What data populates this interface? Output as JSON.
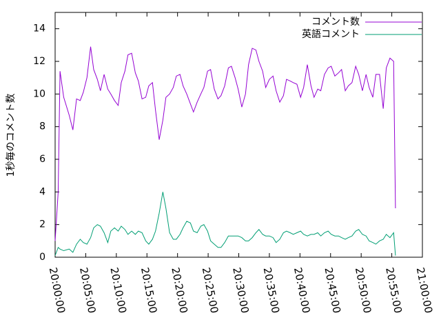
{
  "chart_data": {
    "type": "line",
    "ylabel": "1秒毎のコメント数",
    "x": [
      0,
      0.5,
      0.8,
      1.4,
      2.3,
      2.9,
      3.5,
      4.1,
      4.6,
      5.2,
      5.8,
      6.3,
      6.9,
      7.4,
      8.0,
      8.6,
      9.1,
      9.7,
      10.3,
      10.8,
      11.4,
      11.9,
      12.5,
      13.1,
      13.6,
      14.2,
      14.8,
      15.3,
      15.9,
      16.4,
      17.0,
      17.6,
      18.1,
      18.7,
      19.3,
      19.8,
      20.4,
      20.9,
      21.5,
      22.1,
      22.6,
      23.2,
      23.8,
      24.3,
      24.9,
      25.4,
      26.0,
      26.6,
      27.1,
      27.7,
      28.3,
      28.8,
      29.4,
      29.9,
      30.5,
      31.1,
      31.6,
      32.2,
      32.8,
      33.3,
      33.9,
      34.4,
      35.0,
      35.6,
      36.1,
      36.7,
      37.3,
      37.8,
      38.4,
      38.9,
      39.5,
      40.1,
      40.6,
      41.2,
      41.8,
      42.3,
      42.9,
      43.4,
      44.0,
      44.6,
      45.1,
      45.7,
      46.3,
      46.8,
      47.4,
      47.9,
      48.5,
      49.1,
      49.6,
      50.2,
      50.8,
      51.3,
      51.9,
      52.4,
      53.0,
      53.6,
      54.1,
      54.7,
      55.3,
      55.6
    ],
    "series": [
      {
        "name": "コメント数",
        "color": "#9400d3",
        "values": [
          1.0,
          4.0,
          11.4,
          9.8,
          8.7,
          7.8,
          9.7,
          9.6,
          10.1,
          11.0,
          12.9,
          11.5,
          10.9,
          10.2,
          11.2,
          10.3,
          10.0,
          9.6,
          9.3,
          10.7,
          11.4,
          12.4,
          12.5,
          11.3,
          10.8,
          9.7,
          9.8,
          10.5,
          10.7,
          9.0,
          7.2,
          8.4,
          9.8,
          10.0,
          10.4,
          11.1,
          11.2,
          10.5,
          10.0,
          9.4,
          8.9,
          9.5,
          10.0,
          10.4,
          11.4,
          11.5,
          10.3,
          9.7,
          9.9,
          10.5,
          11.6,
          11.7,
          11.0,
          10.3,
          9.2,
          10.0,
          11.8,
          12.8,
          12.7,
          12.0,
          11.4,
          10.4,
          10.9,
          11.1,
          10.2,
          9.5,
          9.9,
          10.9,
          10.8,
          10.7,
          10.6,
          9.8,
          10.4,
          11.8,
          10.5,
          9.8,
          10.3,
          10.2,
          11.2,
          11.6,
          11.7,
          11.1,
          11.3,
          11.5,
          10.2,
          10.5,
          10.7,
          11.7,
          11.2,
          10.2,
          11.2,
          10.4,
          9.8,
          11.2,
          11.2,
          9.1,
          11.6,
          12.2,
          12.0,
          3.0
        ]
      },
      {
        "name": "英語コメント",
        "color": "#009e73",
        "values": [
          0.1,
          0.6,
          0.5,
          0.4,
          0.5,
          0.3,
          0.8,
          1.1,
          0.9,
          0.8,
          1.2,
          1.8,
          2.0,
          1.9,
          1.5,
          0.9,
          1.6,
          1.8,
          1.6,
          1.9,
          1.7,
          1.4,
          1.6,
          1.4,
          1.6,
          1.5,
          1.0,
          0.8,
          1.1,
          1.6,
          2.7,
          4.0,
          3.0,
          1.5,
          1.1,
          1.1,
          1.4,
          1.8,
          2.2,
          2.1,
          1.6,
          1.5,
          1.9,
          2.0,
          1.6,
          1.0,
          0.8,
          0.6,
          0.6,
          0.9,
          1.3,
          1.3,
          1.3,
          1.3,
          1.2,
          1.0,
          1.0,
          1.2,
          1.5,
          1.7,
          1.4,
          1.3,
          1.3,
          1.2,
          0.9,
          1.1,
          1.5,
          1.6,
          1.5,
          1.4,
          1.5,
          1.6,
          1.4,
          1.3,
          1.4,
          1.4,
          1.5,
          1.3,
          1.5,
          1.6,
          1.4,
          1.3,
          1.3,
          1.2,
          1.1,
          1.2,
          1.3,
          1.6,
          1.7,
          1.4,
          1.3,
          1.0,
          0.9,
          0.8,
          1.0,
          1.1,
          1.4,
          1.2,
          1.5,
          0.1
        ]
      }
    ],
    "xlim": [
      0,
      60
    ],
    "xticks": [
      {
        "value": 0,
        "label": "20:00:00"
      },
      {
        "value": 5,
        "label": "20:05:00"
      },
      {
        "value": 10,
        "label": "20:10:00"
      },
      {
        "value": 15,
        "label": "20:15:00"
      },
      {
        "value": 20,
        "label": "20:20:00"
      },
      {
        "value": 25,
        "label": "20:25:00"
      },
      {
        "value": 30,
        "label": "20:30:00"
      },
      {
        "value": 35,
        "label": "20:35:00"
      },
      {
        "value": 40,
        "label": "20:40:00"
      },
      {
        "value": 45,
        "label": "20:45:00"
      },
      {
        "value": 50,
        "label": "20:50:00"
      },
      {
        "value": 55,
        "label": "20:55:00"
      },
      {
        "value": 60,
        "label": "21:00:00"
      }
    ],
    "ylim": [
      0,
      15
    ],
    "yticks": [
      0,
      2,
      4,
      6,
      8,
      10,
      12,
      14
    ],
    "grid": false,
    "legend": "top-right"
  }
}
